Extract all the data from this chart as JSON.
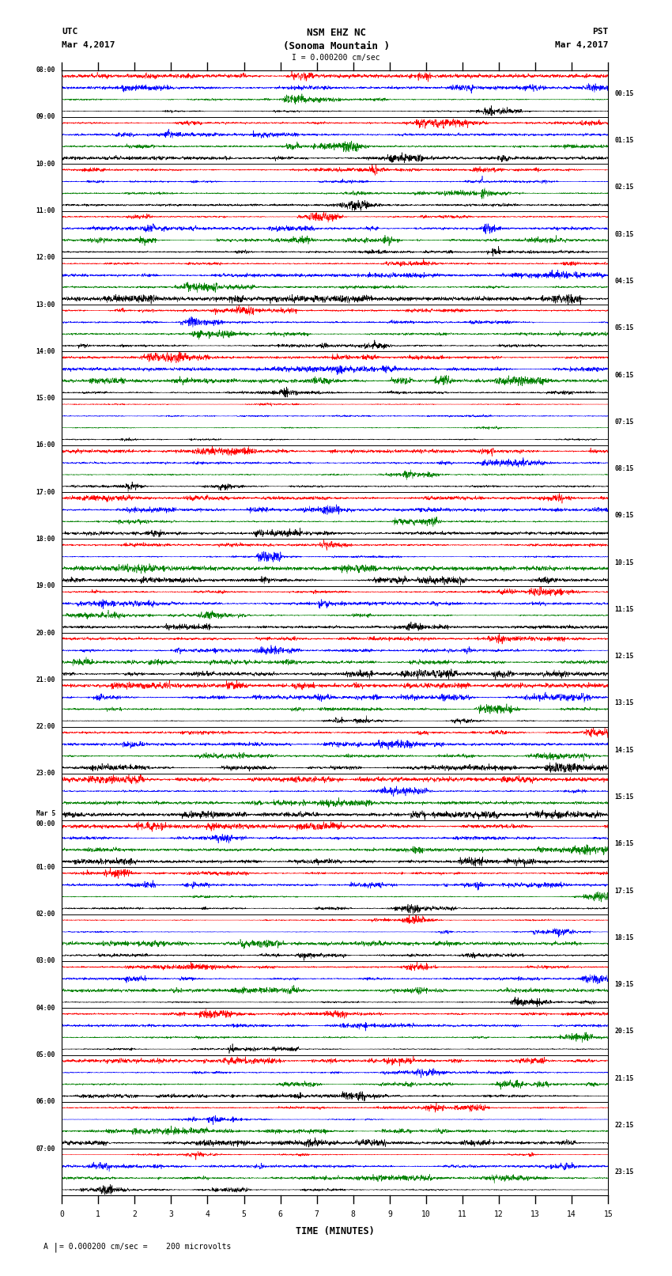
{
  "title_line1": "NSM EHZ NC",
  "title_line2": "(Sonoma Mountain )",
  "title_scale": "I = 0.000200 cm/sec",
  "left_label": "UTC",
  "left_date": "Mar 4,2017",
  "right_label": "PST",
  "right_date": "Mar 4,2017",
  "xlabel": "TIME (MINUTES)",
  "footnote": "= 0.000200 cm/sec =    200 microvolts",
  "xlim": [
    0,
    15
  ],
  "background_color": "white",
  "utc_labels": [
    "08:00",
    "09:00",
    "10:00",
    "11:00",
    "12:00",
    "13:00",
    "14:00",
    "15:00",
    "16:00",
    "17:00",
    "18:00",
    "19:00",
    "20:00",
    "21:00",
    "22:00",
    "23:00",
    "Mar 5\n00:00",
    "01:00",
    "02:00",
    "03:00",
    "04:00",
    "05:00",
    "06:00",
    "07:00"
  ],
  "pst_labels": [
    "00:15",
    "01:15",
    "02:15",
    "03:15",
    "04:15",
    "05:15",
    "06:15",
    "07:15",
    "08:15",
    "09:15",
    "10:15",
    "11:15",
    "12:15",
    "13:15",
    "14:15",
    "15:15",
    "16:15",
    "17:15",
    "18:15",
    "19:15",
    "20:15",
    "21:15",
    "22:15",
    "23:15"
  ],
  "n_rows": 24,
  "traces_per_row": 4,
  "trace_colors": [
    "red",
    "blue",
    "green",
    "black"
  ],
  "seed": 42
}
